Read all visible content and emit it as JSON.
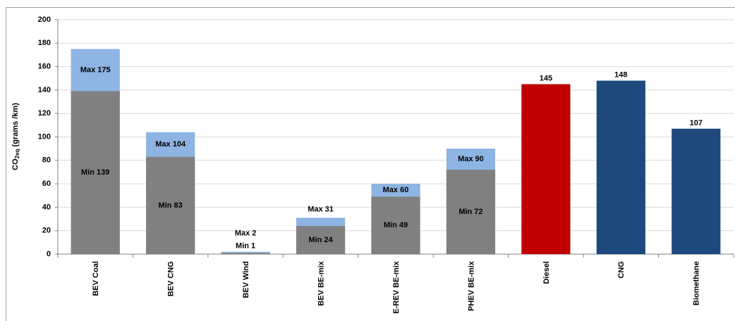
{
  "chart_data": {
    "type": "bar",
    "y_label": {
      "base": "CO",
      "sub": "2eq",
      "rest": "(grams /km)"
    },
    "categories": [
      "BEV Coal",
      "BEV CNG",
      "BEV Wind",
      "BEV BE-mix",
      "E-REV BE-mix",
      "PHEV BE-mix",
      "Diesel",
      "CNG",
      "Biomethane"
    ],
    "series": [
      {
        "color": "#8db4e2",
        "values": [
          175,
          104,
          2,
          31,
          60,
          90,
          null,
          null,
          null
        ],
        "value_labels": [
          "Max 175",
          "Max 104",
          "Max 2",
          "Max 31",
          "Max 60",
          "Max 90",
          null,
          null,
          null
        ]
      },
      {
        "color": "#808080",
        "values": [
          139,
          83,
          1,
          24,
          49,
          72,
          null,
          null,
          null
        ],
        "value_labels": [
          "Min 139",
          "Min 83",
          "Min 1",
          "Min 24",
          "Min 49",
          "Min 72",
          null,
          null,
          null
        ]
      },
      {
        "colors": [
          null,
          null,
          null,
          null,
          null,
          null,
          "#c00000",
          "#1f497d",
          "#1f497d"
        ],
        "values": [
          null,
          null,
          null,
          null,
          null,
          null,
          145,
          148,
          107
        ]
      }
    ],
    "ylim": [
      0,
      200
    ],
    "yticks": [
      0,
      20,
      40,
      60,
      80,
      100,
      120,
      140,
      160,
      180,
      200
    ],
    "grid": true
  }
}
